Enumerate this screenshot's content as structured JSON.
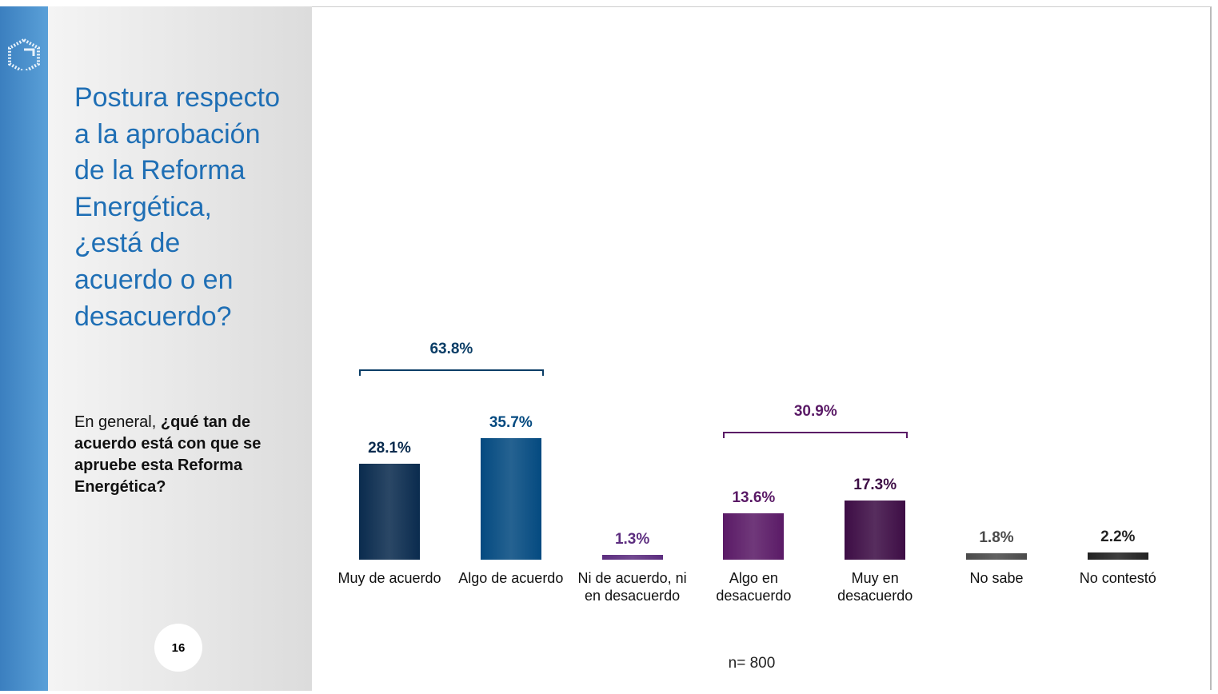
{
  "slide_title": "Postura respecto a la aprobación de la Reforma Energética, ¿está de acuerdo o en desacuerdo?",
  "question": {
    "prefix": "En general,",
    "bold": "¿qué tan de acuerdo está con que se apruebe esta Reforma Energética?"
  },
  "page_number": "16",
  "chart_data": {
    "type": "bar",
    "categories": [
      "Muy de acuerdo",
      "Algo de acuerdo",
      "Ni de acuerdo, ni en desacuerdo",
      "Algo en desacuerdo",
      "Muy en desacuerdo",
      "No sabe",
      "No contestó"
    ],
    "values": [
      28.1,
      35.7,
      1.3,
      13.6,
      17.3,
      1.8,
      2.2
    ],
    "value_labels": [
      "28.1%",
      "35.7%",
      "1.3%",
      "13.6%",
      "17.3%",
      "1.8%",
      "2.2%"
    ],
    "colors": [
      "#0a2b4e",
      "#044a80",
      "#5c2d7f",
      "#5a1a66",
      "#3d0d45",
      "#4a4a4a",
      "#222222"
    ],
    "annotations": [
      {
        "text": "63.8%",
        "value": 63.8,
        "spans": [
          "Muy de acuerdo",
          "Algo de acuerdo"
        ],
        "color": "#0a3d66"
      },
      {
        "text": "30.9%",
        "value": 30.9,
        "spans": [
          "Algo en desacuerdo",
          "Muy en desacuerdo"
        ],
        "color": "#5a1a66"
      }
    ],
    "note": "n= 800"
  }
}
